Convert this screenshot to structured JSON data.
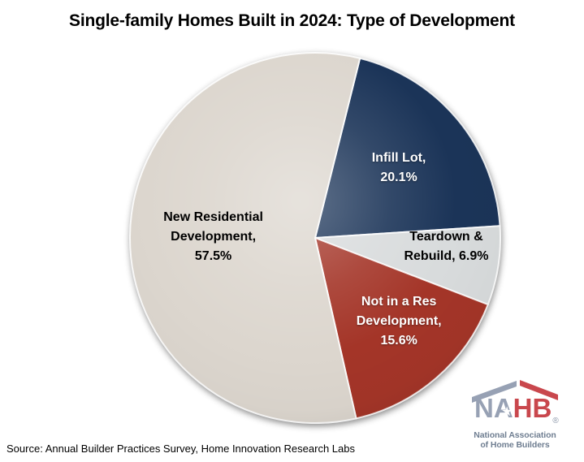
{
  "title": "Single-family Homes Built in 2024: Type of Development",
  "source": "Source: Annual Builder Practices Survey, Home Innovation Research Labs",
  "chart_data": {
    "type": "pie",
    "title": "Single-family Homes Built in 2024: Type of Development",
    "direction": "clockwise",
    "start_angle_deg": 14,
    "legend": "none",
    "slices": [
      {
        "label": "Infill Lot",
        "value_pct": 20.1,
        "color": "#1B3458",
        "text_color": "#FFFFFF",
        "display_lines": [
          "Infill Lot,",
          "20.1%"
        ]
      },
      {
        "label": "Teardown & Rebuild",
        "value_pct": 6.9,
        "color": "#D8DBDC",
        "text_color": "#000000",
        "display_lines": [
          "Teardown &",
          "Rebuild, 6.9%"
        ]
      },
      {
        "label": "Not in a Res Development",
        "value_pct": 15.6,
        "color": "#A43528",
        "text_color": "#FFFFFF",
        "display_lines": [
          "Not in a Res",
          "Development,",
          "15.6%"
        ]
      },
      {
        "label": "New Residential Development",
        "value_pct": 57.5,
        "color": "#DCD6CE",
        "text_color": "#000000",
        "display_lines": [
          "New Residential",
          "Development,",
          "57.5%"
        ]
      }
    ],
    "label_layout": {
      "angles_deg": [
        50,
        94,
        135,
        270.5
      ],
      "radius_frac": [
        0.59,
        0.71,
        0.64,
        0.55
      ]
    }
  },
  "logo": {
    "name": "NAHB",
    "acronym_na": "NA",
    "acronym_hb": "HB",
    "star_glyph": "★",
    "registered_mark": "®",
    "tagline_line1": "National Association",
    "tagline_line2": "of Home Builders",
    "colors": {
      "slate": "#97A1B4",
      "red": "#C9474D",
      "tagline": "#6F7E91",
      "star": "#FFFFFF"
    }
  },
  "colors": {
    "background": "#FFFFFF",
    "title_text": "#000000",
    "source_text": "#000000"
  }
}
